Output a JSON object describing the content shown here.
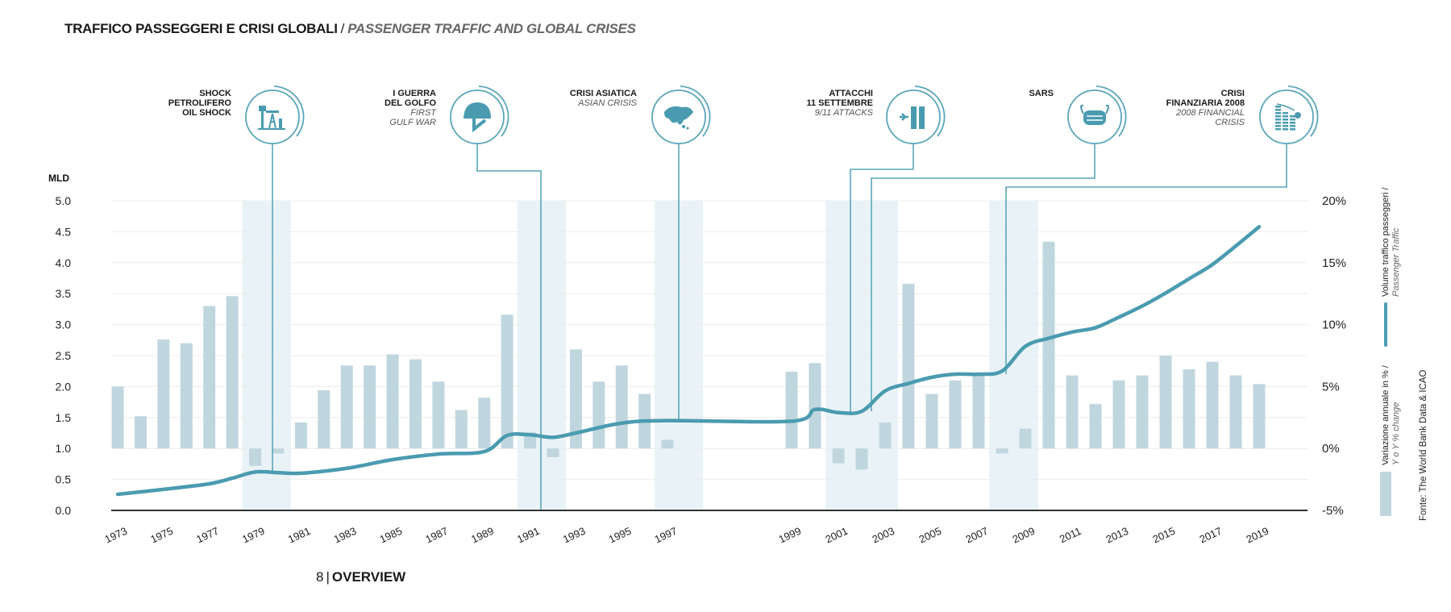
{
  "header": {
    "title_it": "TRAFFICO PASSEGGERI E CRISI GLOBALI",
    "separator": "/",
    "title_en": "PASSENGER TRAFFIC AND GLOBAL CRISES"
  },
  "crises": [
    {
      "id": "oil-shock",
      "label_it_lines": [
        "SHOCK",
        "PETROLIFERO"
      ],
      "label_en_lines": [
        "OIL SHOCK"
      ],
      "en_italic": false,
      "icon": "oil-derrick-icon",
      "years": [
        1979,
        1980
      ]
    },
    {
      "id": "gulf-war",
      "label_it_lines": [
        "I GUERRA",
        "DEL GOLFO"
      ],
      "label_en_lines": [
        "FIRST",
        "GULF WAR"
      ],
      "en_italic": true,
      "icon": "helmet-icon",
      "years": [
        1991,
        1992
      ]
    },
    {
      "id": "asian-crisis",
      "label_it_lines": [
        "CRISI ASIATICA"
      ],
      "label_en_lines": [
        "ASIAN CRISIS"
      ],
      "en_italic": true,
      "icon": "asia-map-icon",
      "years": [
        1997
      ]
    },
    {
      "id": "sept-11",
      "label_it_lines": [
        "ATTACCHI",
        "11 SETTEMBRE"
      ],
      "label_en_lines": [
        "9/11 ATTACKS"
      ],
      "en_italic": true,
      "icon": "plane-towers-icon",
      "years": [
        2001,
        2002,
        2003
      ]
    },
    {
      "id": "sars",
      "label_it_lines": [
        "SARS"
      ],
      "label_en_lines": [],
      "en_italic": true,
      "icon": "face-mask-icon",
      "years": [
        2003
      ]
    },
    {
      "id": "financial-crisis",
      "label_it_lines": [
        "CRISI",
        "FINANZIARIA 2008"
      ],
      "label_en_lines": [
        "2008 FINANCIAL",
        "CRISIS"
      ],
      "en_italic": true,
      "icon": "falling-coins-icon",
      "years": [
        2008,
        2009
      ]
    }
  ],
  "legend": {
    "line_it": "Volume traffico passeggeri /",
    "line_en": "Passenger Traffic",
    "bar_it": "Variazione annuale in % /",
    "bar_en": "Y o Y % change",
    "source": "Fonte: The World Bank Data & ICAO"
  },
  "footer": {
    "page": "8",
    "divider": "|",
    "section": "OVERVIEW"
  },
  "colors": {
    "line": "#4a9bb0",
    "bar": "#c0d6df",
    "band": "#e9f3f7",
    "connector": "#5aa6ba",
    "grid": "#ececec",
    "axis": "#333333"
  },
  "chart_data": {
    "type": "bar+line",
    "title": "TRAFFICO PASSEGGERI E CRISI GLOBALI / PASSENGER TRAFFIC AND GLOBAL CRISES",
    "left_axis": {
      "label": "MLD",
      "ticks": [
        "0.0",
        "0.5",
        "1.0",
        "1.5",
        "2.0",
        "2.5",
        "3.0",
        "3.5",
        "4.0",
        "4.5",
        "5.0"
      ],
      "range": [
        0,
        5
      ]
    },
    "right_axis": {
      "ticks": [
        "-5%",
        "0%",
        "5%",
        "10%",
        "15%",
        "20%"
      ],
      "range": [
        -5,
        20
      ]
    },
    "x_tick_labels": [
      "1973",
      "1975",
      "1977",
      "1979",
      "1981",
      "1983",
      "1985",
      "1987",
      "1989",
      "1991",
      "1993",
      "1995",
      "1997",
      "1999",
      "2001",
      "2003",
      "2005",
      "2007",
      "2009",
      "2011",
      "2013",
      "2015",
      "2017",
      "2019"
    ],
    "grid": true,
    "legend_position": "right",
    "series": [
      {
        "name": "Variazione annuale in % / Y o Y % change",
        "type": "bar",
        "axis": "right",
        "x": [
          1973,
          1974,
          1975,
          1976,
          1977,
          1978,
          1979,
          1980,
          1981,
          1982,
          1983,
          1984,
          1985,
          1986,
          1987,
          1988,
          1989,
          1990,
          1991,
          1992,
          1993,
          1994,
          1995,
          1996,
          1997,
          1999,
          2000,
          2001,
          2002,
          2003,
          2004,
          2005,
          2006,
          2007,
          2008,
          2009,
          2010,
          2011,
          2012,
          2013,
          2014,
          2015,
          2016,
          2017,
          2018,
          2019
        ],
        "values": [
          5.0,
          2.6,
          8.8,
          8.5,
          11.5,
          12.3,
          -1.4,
          -0.4,
          2.1,
          4.7,
          6.7,
          6.7,
          7.6,
          7.2,
          5.4,
          3.1,
          4.1,
          10.8,
          1.3,
          -0.7,
          8.0,
          5.4,
          6.7,
          4.4,
          0.7,
          6.2,
          6.9,
          -1.2,
          -1.7,
          2.1,
          13.3,
          4.4,
          5.5,
          6.1,
          -0.4,
          1.6,
          16.7,
          5.9,
          3.6,
          5.5,
          5.9,
          7.5,
          6.4,
          7.0,
          5.9,
          5.2
        ]
      },
      {
        "name": "Volume traffico passeggeri / Passenger Traffic",
        "type": "line",
        "axis": "left",
        "unit": "MLD",
        "x": [
          1973,
          1975,
          1977,
          1978,
          1979,
          1980,
          1981,
          1983,
          1985,
          1987,
          1989,
          1990,
          1991,
          1992,
          1993,
          1995,
          1997,
          1999,
          2000,
          2001,
          2002,
          2003,
          2004,
          2005,
          2006,
          2007,
          2008,
          2009,
          2010,
          2011,
          2012,
          2013,
          2014,
          2015,
          2016,
          2017,
          2018,
          2019
        ],
        "values": [
          0.26,
          0.34,
          0.43,
          0.52,
          0.62,
          0.61,
          0.6,
          0.68,
          0.82,
          0.91,
          0.95,
          1.21,
          1.22,
          1.18,
          1.25,
          1.41,
          1.45,
          1.44,
          1.63,
          1.58,
          1.6,
          1.93,
          2.05,
          2.15,
          2.2,
          2.2,
          2.25,
          2.65,
          2.78,
          2.88,
          2.95,
          3.12,
          3.3,
          3.51,
          3.74,
          3.97,
          4.27,
          4.58
        ]
      }
    ]
  }
}
